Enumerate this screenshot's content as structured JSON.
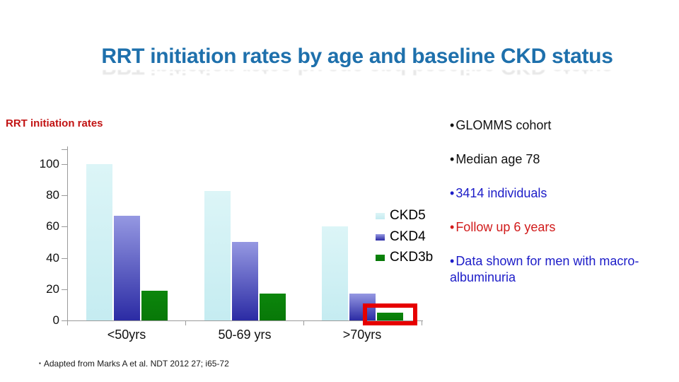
{
  "title": {
    "text": "RRT initiation rates by age and baseline CKD status"
  },
  "chart_label": "RRT initiation rates",
  "bullet_glyph": "•",
  "bullets": [
    {
      "text": "GLOMMS cohort",
      "color": "black"
    },
    {
      "text": "Median age 78",
      "color": "black"
    },
    {
      "text": "3414 individuals",
      "color": "blue"
    },
    {
      "text": "Follow up 6 years",
      "color": "red"
    },
    {
      "text": "Data shown for men with macro-albuminuria",
      "color": "blue"
    }
  ],
  "citation": {
    "bullet": "▪",
    "text": "Adapted from Marks A et al. NDT 2012 27; i65-72"
  },
  "colors": {
    "title": "#1e70ac",
    "chart_label_red": "#c21414",
    "black_text": "#111111",
    "blue_text": "#1c1cc8",
    "red_text": "#d11b1b",
    "highlight_box": "#e60000",
    "axis": "#9a9a9a"
  },
  "chart_data": {
    "type": "bar",
    "title": "RRT initiation rates",
    "categories": [
      "<50yrs",
      "50-69 yrs",
      ">70yrs"
    ],
    "series": [
      {
        "name": "CKD5",
        "values": [
          100,
          83,
          60
        ],
        "color_top": "#dcf5f7",
        "color_bottom": "#c5ecf1"
      },
      {
        "name": "CKD4",
        "values": [
          67,
          50,
          17
        ],
        "color_top": "#9598e2",
        "color_bottom": "#2b2ba4"
      },
      {
        "name": "CKD3b",
        "values": [
          19,
          17,
          5
        ],
        "color_top": "#0c860c",
        "color_bottom": "#087808"
      }
    ],
    "ylim": [
      0,
      100
    ],
    "yticks": [
      0,
      20,
      40,
      60,
      80,
      100
    ],
    "grid": false,
    "legend_position": "right-middle",
    "annotation": "red highlight box around the CKD3b bar of the >70yrs group"
  }
}
